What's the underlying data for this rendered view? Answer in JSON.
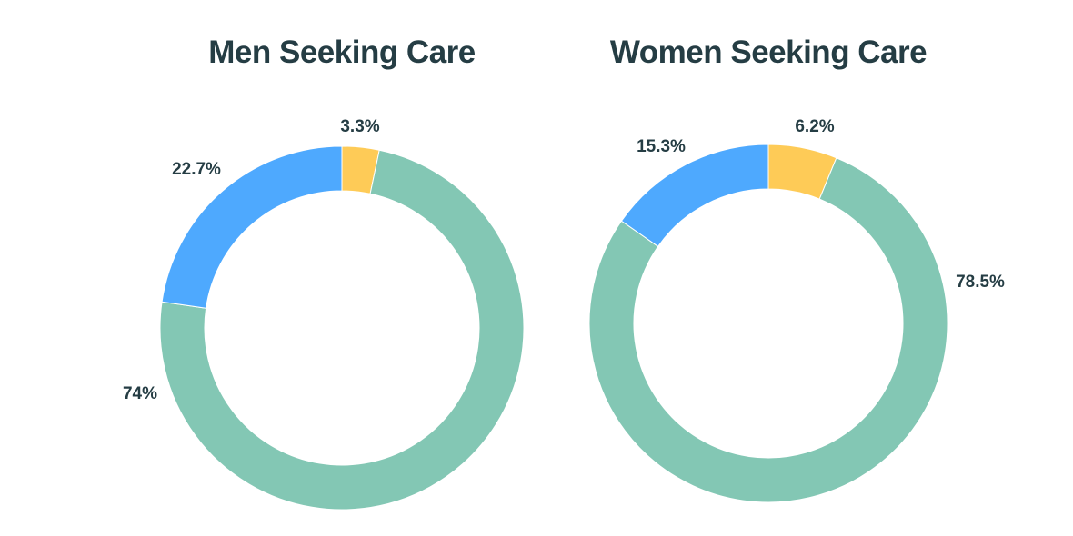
{
  "chart_data": [
    {
      "type": "pie",
      "title": "Men Seeking Care",
      "categories": [
        "",
        "",
        ""
      ],
      "values": [
        3.3,
        74,
        22.7
      ],
      "labels": [
        "3.3%",
        "74%",
        "22.7%"
      ],
      "colors": [
        "#fecb57",
        "#83c7b4",
        "#4ea9fe"
      ],
      "start": "top, clockwise",
      "donut": true
    },
    {
      "type": "pie",
      "title": "Women Seeking Care",
      "categories": [
        "",
        "",
        ""
      ],
      "values": [
        6.2,
        78.5,
        15.3
      ],
      "labels": [
        "6.2%",
        "78.5%",
        "15.3%"
      ],
      "colors": [
        "#fecb57",
        "#83c7b4",
        "#4ea9fe"
      ],
      "start": "top, clockwise",
      "donut": true
    }
  ]
}
